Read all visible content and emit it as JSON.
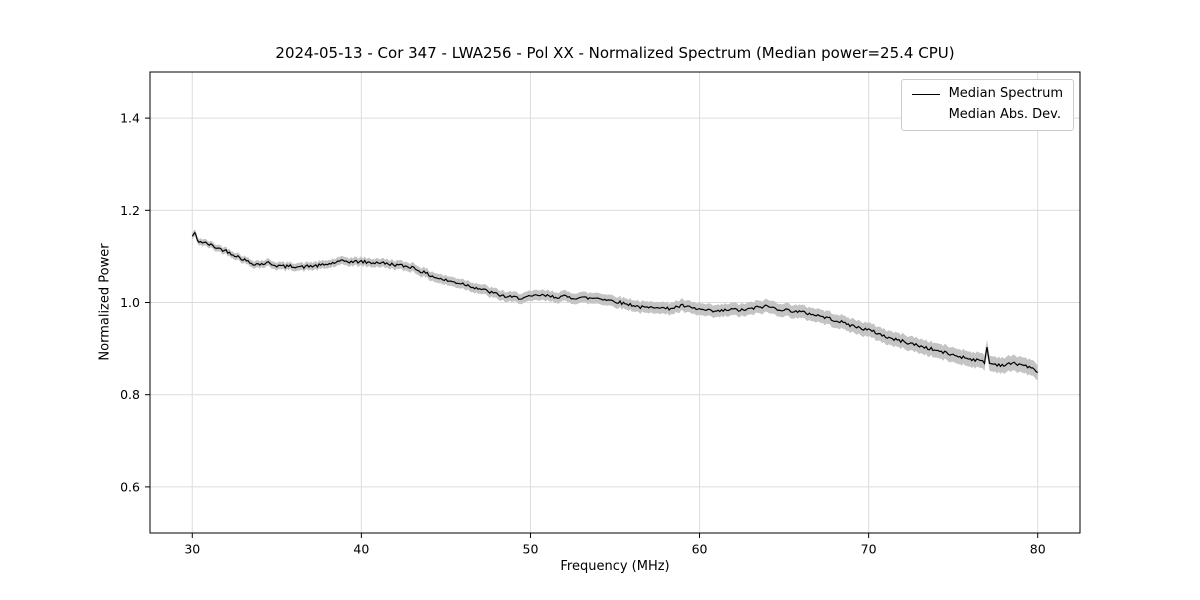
{
  "chart_data": {
    "type": "line",
    "title": "2024-05-13 - Cor 347 - LWA256 - Pol XX - Normalized Spectrum (Median power=25.4 CPU)",
    "xlabel": "Frequency (MHz)",
    "ylabel": "Normalized Power",
    "xlim": [
      27.5,
      82.5
    ],
    "ylim": [
      0.5,
      1.5
    ],
    "x_ticks": [
      30,
      40,
      50,
      60,
      70,
      80
    ],
    "y_ticks": [
      0.6,
      0.8,
      1.0,
      1.2,
      1.4
    ],
    "grid": true,
    "legend_position": "upper right",
    "colors": {
      "line": "#000000",
      "band": "#c4c4c4",
      "grid": "#dcdcdc"
    },
    "visual_noise_amplitude": 0.0035,
    "series": [
      {
        "name": "Median Spectrum",
        "color": "#000000",
        "x": [
          30.0,
          30.15,
          30.3,
          30.5,
          31.0,
          31.5,
          32.0,
          32.5,
          33.0,
          33.5,
          34.0,
          34.5,
          35.0,
          35.5,
          36.0,
          36.5,
          37.0,
          37.5,
          38.0,
          38.5,
          39.0,
          39.5,
          40.0,
          40.5,
          41.0,
          41.5,
          42.0,
          42.5,
          43.0,
          43.5,
          44.0,
          44.5,
          45.0,
          45.5,
          46.0,
          46.5,
          47.0,
          47.5,
          48.0,
          48.5,
          49.0,
          49.5,
          50.0,
          50.5,
          51.0,
          51.5,
          52.0,
          52.5,
          53.0,
          53.5,
          54.0,
          54.5,
          55.0,
          55.5,
          56.0,
          56.5,
          57.0,
          57.5,
          58.0,
          58.5,
          59.0,
          59.5,
          60.0,
          60.5,
          61.0,
          61.5,
          62.0,
          62.5,
          63.0,
          63.5,
          64.0,
          64.5,
          65.0,
          65.5,
          66.0,
          66.5,
          67.0,
          67.5,
          68.0,
          68.5,
          69.0,
          69.5,
          70.0,
          70.5,
          71.0,
          71.5,
          72.0,
          72.5,
          73.0,
          73.5,
          74.0,
          74.5,
          75.0,
          75.5,
          76.0,
          76.5,
          76.85,
          77.0,
          77.15,
          77.5,
          78.0,
          78.5,
          79.0,
          79.5,
          80.0
        ],
        "y": [
          1.143,
          1.152,
          1.134,
          1.132,
          1.126,
          1.118,
          1.112,
          1.103,
          1.094,
          1.085,
          1.083,
          1.086,
          1.08,
          1.078,
          1.079,
          1.077,
          1.079,
          1.08,
          1.083,
          1.087,
          1.09,
          1.088,
          1.089,
          1.086,
          1.087,
          1.084,
          1.082,
          1.079,
          1.077,
          1.068,
          1.06,
          1.053,
          1.048,
          1.044,
          1.041,
          1.035,
          1.03,
          1.024,
          1.018,
          1.013,
          1.011,
          1.01,
          1.012,
          1.016,
          1.014,
          1.012,
          1.013,
          1.01,
          1.011,
          1.009,
          1.01,
          1.006,
          1.003,
          0.998,
          0.995,
          0.99,
          0.988,
          0.992,
          0.986,
          0.989,
          0.993,
          0.988,
          0.985,
          0.982,
          0.98,
          0.983,
          0.985,
          0.983,
          0.986,
          0.99,
          0.992,
          0.987,
          0.984,
          0.982,
          0.979,
          0.976,
          0.972,
          0.967,
          0.962,
          0.956,
          0.95,
          0.945,
          0.94,
          0.934,
          0.926,
          0.92,
          0.916,
          0.911,
          0.906,
          0.901,
          0.896,
          0.891,
          0.886,
          0.882,
          0.878,
          0.874,
          0.871,
          0.903,
          0.868,
          0.866,
          0.864,
          0.868,
          0.866,
          0.86,
          0.848
        ]
      },
      {
        "name": "Median Abs. Dev.",
        "type": "band",
        "color": "#c4c4c4",
        "halfwidth_start": 0.007,
        "halfwidth_end": 0.017
      }
    ]
  },
  "legend": {
    "items": [
      {
        "label": "Median Spectrum",
        "swatch": "line",
        "color": "#000000"
      },
      {
        "label": "Median Abs. Dev.",
        "swatch": "patch",
        "color": "#c4c4c4"
      }
    ]
  }
}
